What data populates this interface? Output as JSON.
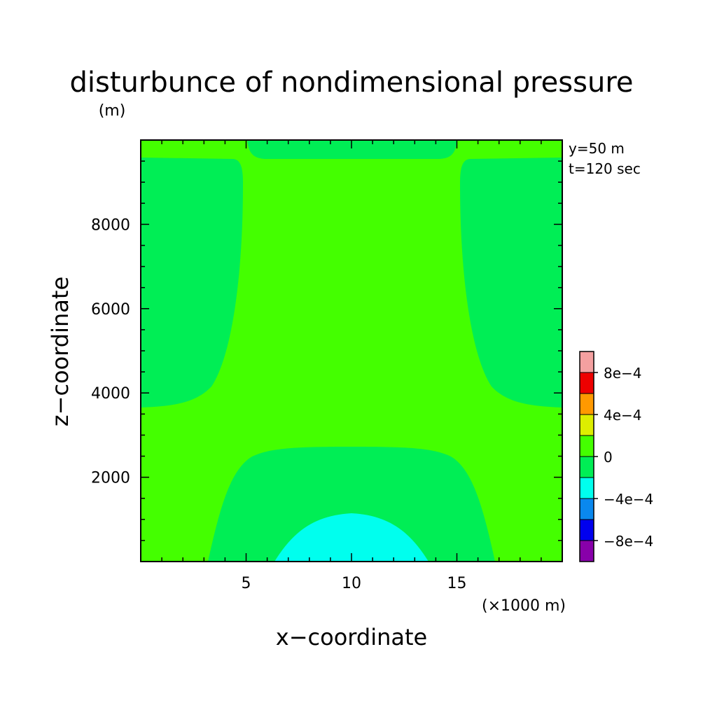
{
  "chart_data": {
    "type": "heatmap",
    "title": "disturbunce of nondimensional pressure",
    "ylabel": "z−coordinate",
    "xlabel": "x−coordinate",
    "y_unit": "(m)",
    "x_unit": "(×1000 m)",
    "annotations": [
      "y=50 m",
      "t=120 sec"
    ],
    "xlim": [
      0,
      20
    ],
    "ylim": [
      0,
      10000
    ],
    "x_ticks": [
      {
        "value": 5,
        "label": "5"
      },
      {
        "value": 10,
        "label": "10"
      },
      {
        "value": 15,
        "label": "15"
      }
    ],
    "y_ticks": [
      {
        "value": 2000,
        "label": "2000"
      },
      {
        "value": 4000,
        "label": "4000"
      },
      {
        "value": 6000,
        "label": "6000"
      },
      {
        "value": 8000,
        "label": "8000"
      }
    ],
    "colorbar": {
      "levels": [
        {
          "color": "#8800aa",
          "from": -0.001,
          "to": -0.0008
        },
        {
          "color": "#0000ee",
          "from": -0.0008,
          "to": -0.0006
        },
        {
          "color": "#0a88ee",
          "from": -0.0006,
          "to": -0.0004
        },
        {
          "color": "#00ffee",
          "from": -0.0004,
          "to": -0.0002
        },
        {
          "color": "#00ee55",
          "from": -0.0002,
          "to": 0
        },
        {
          "color": "#44ff00",
          "from": 0,
          "to": 0.0002
        },
        {
          "color": "#ddee00",
          "from": 0.0002,
          "to": 0.0004
        },
        {
          "color": "#ff9900",
          "from": 0.0004,
          "to": 0.0006
        },
        {
          "color": "#ee0000",
          "from": 0.0006,
          "to": 0.0008
        },
        {
          "color": "#f4a0a0",
          "from": 0.0008,
          "to": 0.001
        }
      ],
      "tick_labels": [
        {
          "value": -0.0008,
          "label": "−8e−4"
        },
        {
          "value": -0.0004,
          "label": "−4e−4"
        },
        {
          "value": 0,
          "label": "0"
        },
        {
          "value": 0.0004,
          "label": "4e−4"
        },
        {
          "value": 0.0008,
          "label": "8e−4"
        }
      ]
    },
    "regions": [
      {
        "name": "background",
        "color": "#44ff00",
        "range": [
          0,
          0.0002
        ]
      },
      {
        "name": "top-center",
        "color": "#00ee55",
        "range": [
          -0.0002,
          0
        ]
      },
      {
        "name": "upper-left",
        "color": "#00ee55",
        "range": [
          -0.0002,
          0
        ]
      },
      {
        "name": "upper-right",
        "color": "#00ee55",
        "range": [
          -0.0002,
          0
        ]
      },
      {
        "name": "bottom-center-outer",
        "color": "#00ee55",
        "range": [
          -0.0002,
          0
        ]
      },
      {
        "name": "bottom-center-inner",
        "color": "#00ffee",
        "range": [
          -0.0004,
          -0.0002
        ]
      }
    ]
  }
}
